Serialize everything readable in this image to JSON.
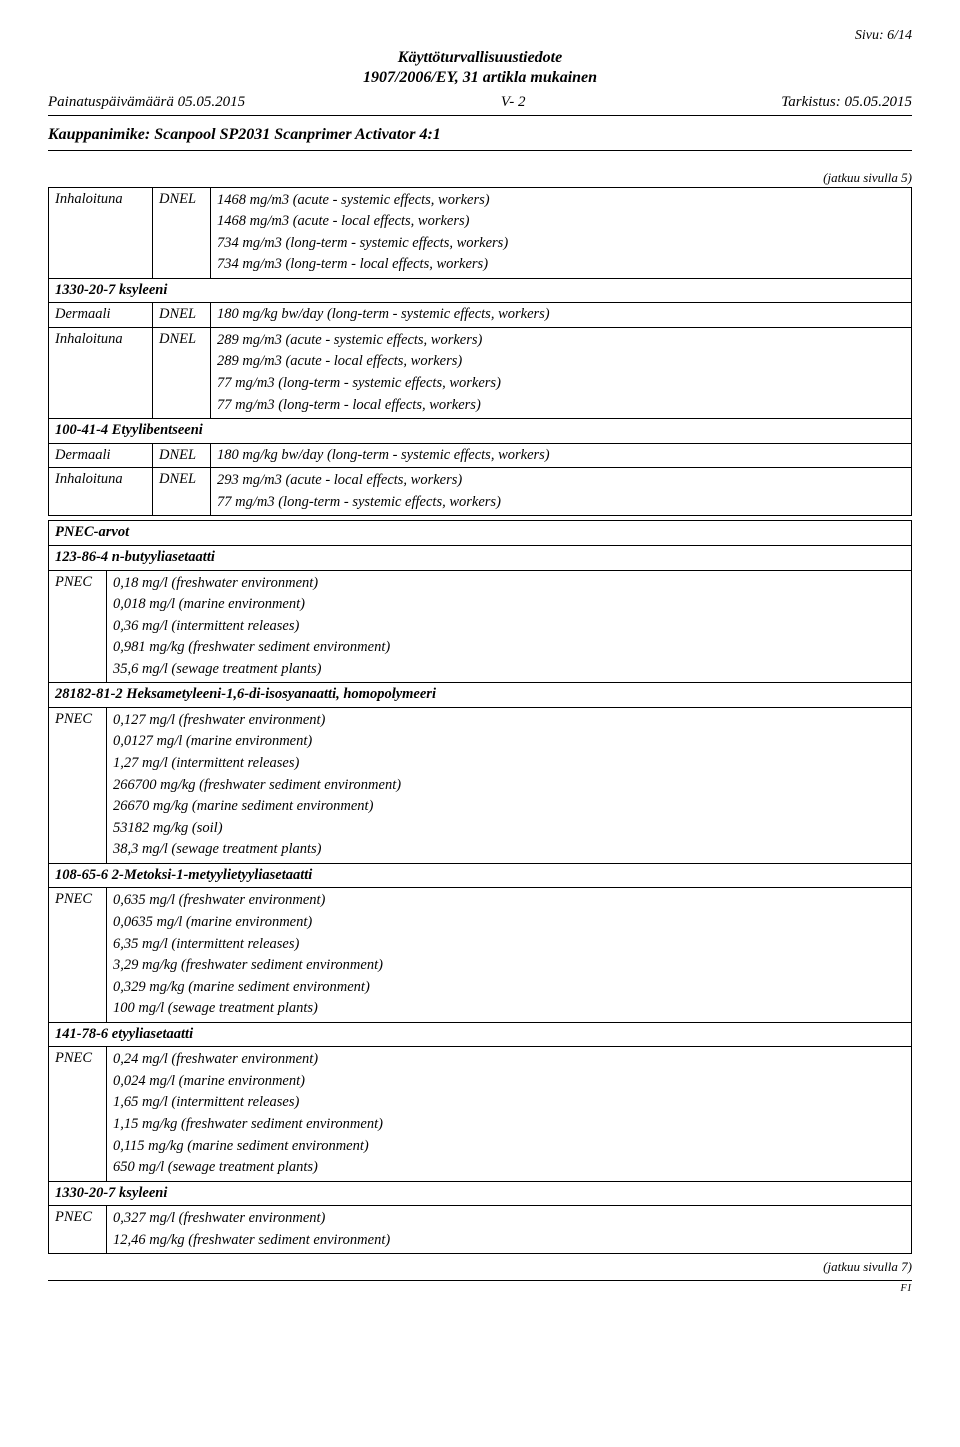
{
  "header": {
    "page_label": "Sivu: 6/14",
    "doc_title1": "Käyttöturvallisuustiedote",
    "doc_title2": "1907/2006/EY, 31 artikla mukainen",
    "print_date": "Painatuspäivämäärä 05.05.2015",
    "version": "V- 2",
    "revision": "Tarkistus: 05.05.2015",
    "product": "Kauppanimike: Scanpool SP2031 Scanprimer Activator 4:1",
    "cont_from": "(jatkuu sivulla 5)",
    "cont_to": "(jatkuu sivulla 7)",
    "footer_code": "FI"
  },
  "dnel": {
    "r1": {
      "route": "Inhaloituna",
      "type": "DNEL",
      "v": [
        "1468 mg/m3 (acute - systemic effects, workers)",
        "1468 mg/m3 (acute - local effects, workers)",
        "734 mg/m3 (long-term - systemic effects, workers)",
        "734 mg/m3 (long-term - local effects, workers)"
      ]
    },
    "s1": "1330-20-7 ksyleeni",
    "r2": {
      "route": "Dermaali",
      "type": "DNEL",
      "v1": "180 mg/kg bw/day (long-term - systemic effects, workers)"
    },
    "r3": {
      "route": "Inhaloituna",
      "type": "DNEL",
      "v": [
        "289 mg/m3 (acute - systemic effects, workers)",
        "289 mg/m3 (acute - local effects, workers)",
        "77 mg/m3 (long-term - systemic effects, workers)",
        "77 mg/m3 (long-term - local effects, workers)"
      ]
    },
    "s2": "100-41-4 Etyylibentseeni",
    "r4": {
      "route": "Dermaali",
      "type": "DNEL",
      "v1": "180 mg/kg bw/day (long-term - systemic effects, workers)"
    },
    "r5": {
      "route": "Inhaloituna",
      "type": "DNEL",
      "v": [
        "293 mg/m3 (acute - local effects, workers)",
        "77 mg/m3 (long-term - systemic effects, workers)"
      ]
    }
  },
  "pnec": {
    "hd": "PNEC-arvot",
    "s1": "123-86-4 n-butyyliasetaatti",
    "r1": {
      "t": "PNEC",
      "v": [
        "0,18 mg/l (freshwater environment)",
        "0,018 mg/l (marine environment)",
        "0,36 mg/l (intermittent releases)",
        "0,981 mg/kg (freshwater sediment environment)",
        "35,6 mg/l (sewage treatment plants)"
      ]
    },
    "s2": "28182-81-2 Heksametyleeni-1,6-di-isosyanaatti, homopolymeeri",
    "r2": {
      "t": "PNEC",
      "v": [
        "0,127 mg/l (freshwater environment)",
        "0,0127 mg/l (marine environment)",
        "1,27 mg/l (intermittent releases)",
        "266700 mg/kg (freshwater sediment environment)",
        "26670 mg/kg (marine sediment environment)",
        "53182 mg/kg (soil)",
        "38,3 mg/l (sewage treatment plants)"
      ]
    },
    "s3": "108-65-6 2-Metoksi-1-metyylietyyliasetaatti",
    "r3": {
      "t": "PNEC",
      "v": [
        "0,635 mg/l (freshwater environment)",
        "0,0635 mg/l (marine environment)",
        "6,35 mg/l (intermittent releases)",
        "3,29 mg/kg (freshwater sediment environment)",
        "0,329 mg/kg (marine sediment environment)",
        "100 mg/l (sewage treatment plants)"
      ]
    },
    "s4": "141-78-6 etyyliasetaatti",
    "r4": {
      "t": "PNEC",
      "v": [
        "0,24 mg/l (freshwater environment)",
        "0,024 mg/l (marine environment)",
        "1,65 mg/l (intermittent releases)",
        "1,15 mg/kg (freshwater sediment environment)",
        "0,115 mg/kg (marine sediment environment)",
        "650 mg/l (sewage treatment plants)"
      ]
    },
    "s5": "1330-20-7 ksyleeni",
    "r5": {
      "t": "PNEC",
      "v": [
        "0,327 mg/l (freshwater environment)",
        "12,46 mg/kg (freshwater sediment environment)"
      ]
    }
  }
}
